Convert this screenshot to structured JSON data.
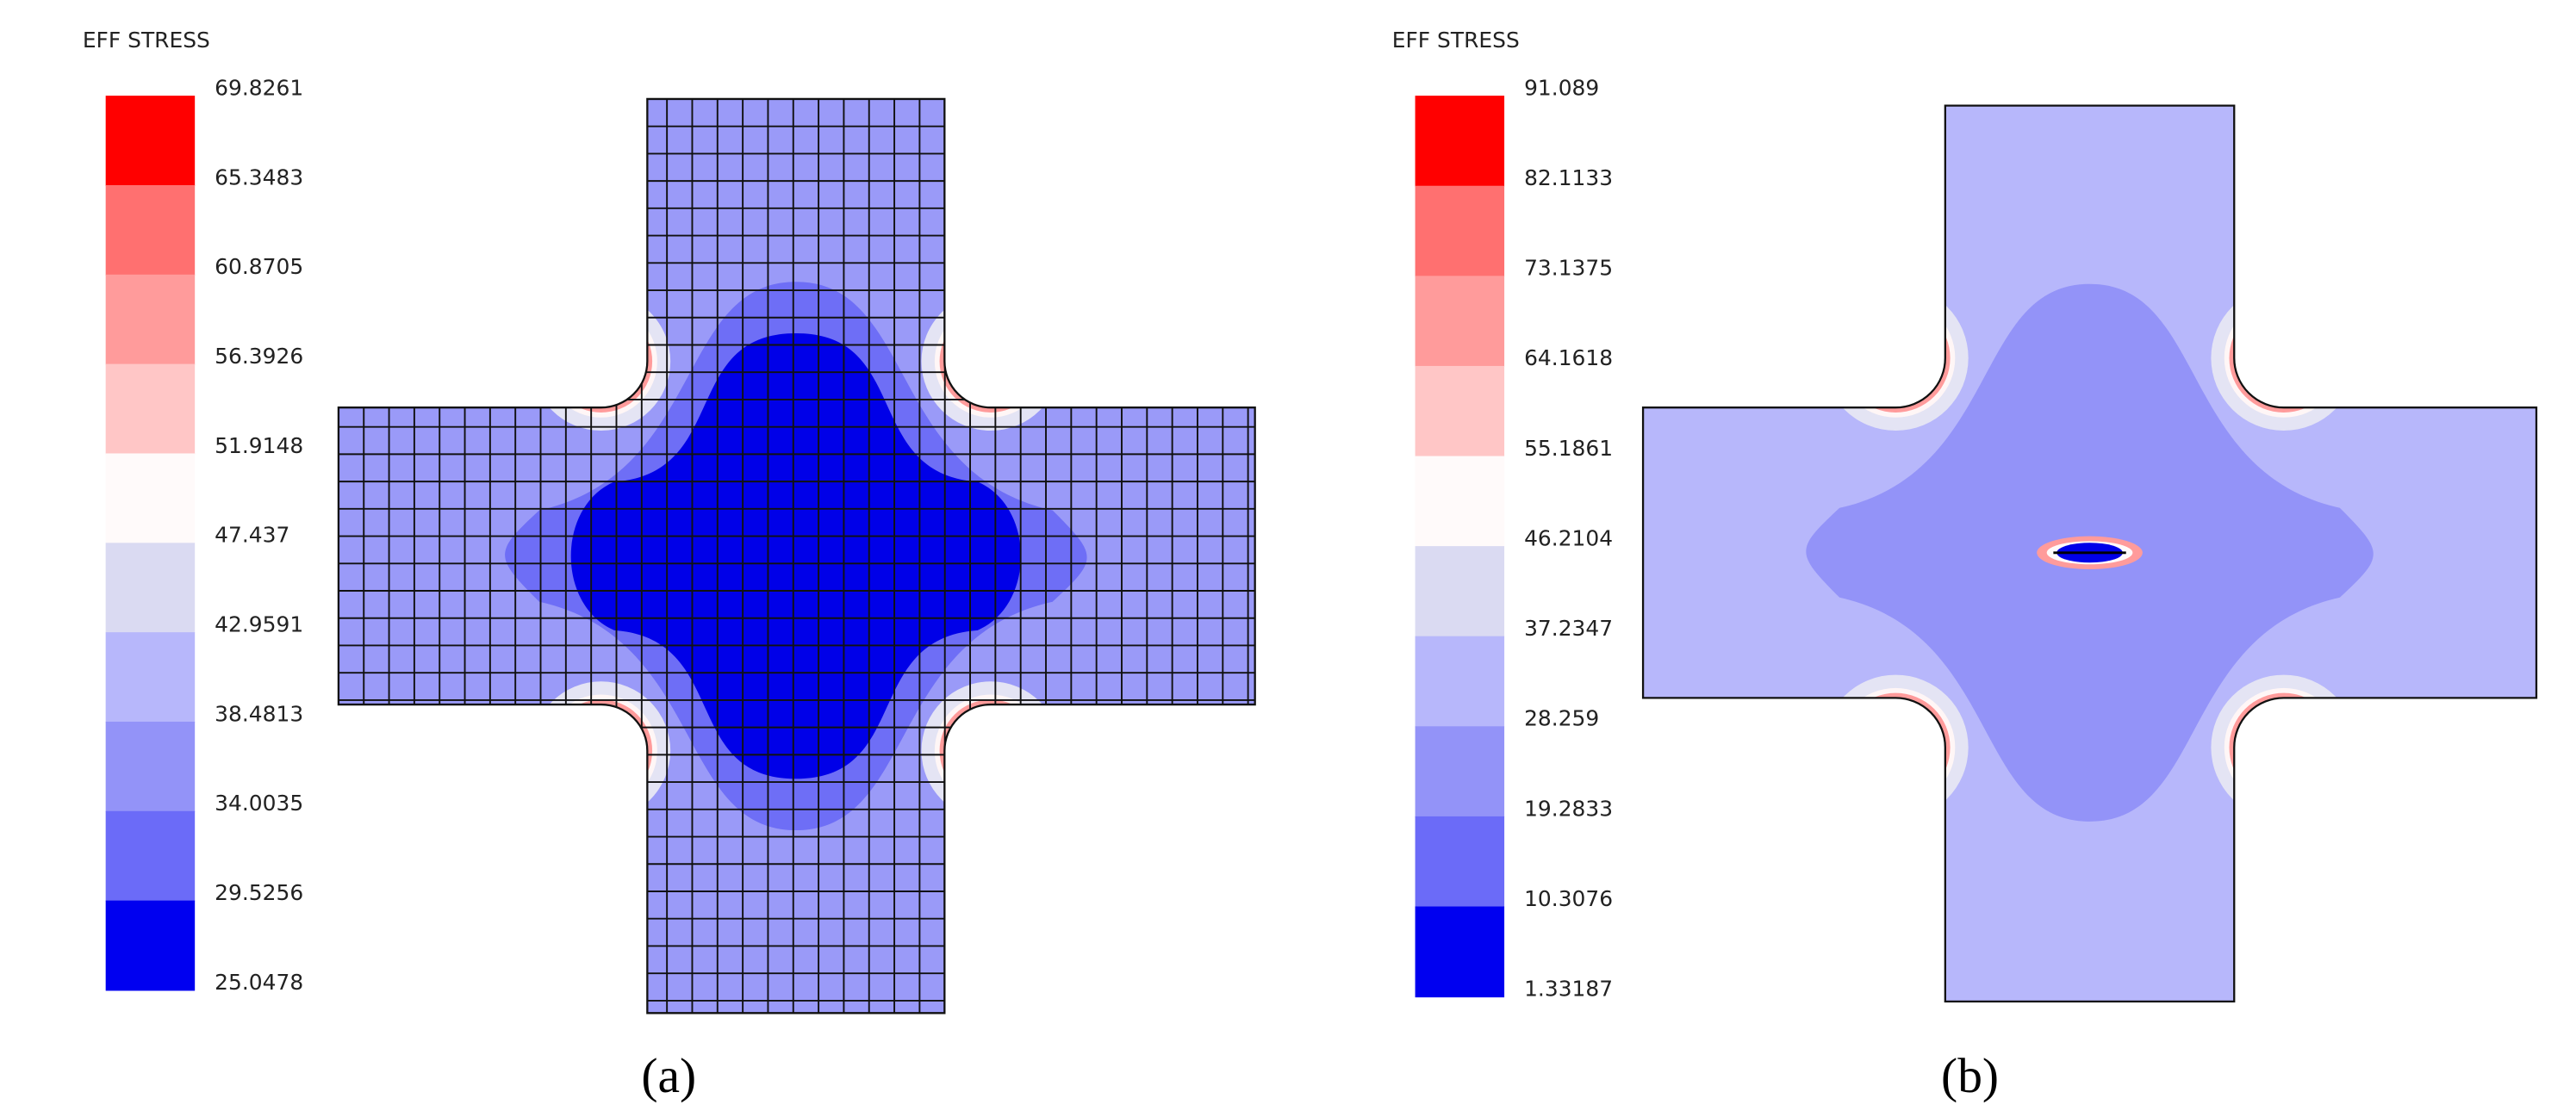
{
  "panels": [
    {
      "title": "EFF STRESS",
      "legend_labels": [
        "69.8261",
        "65.3483",
        "60.8705",
        "56.3926",
        "51.9148",
        "47.437",
        "42.9591",
        "38.4813",
        "34.0035",
        "29.5256",
        "25.0478"
      ],
      "legend_colors": [
        "#ff0000",
        "#ff7070",
        "#ff9b9b",
        "#ffc6c6",
        "#fffafa",
        "#dadaf2",
        "#b7b7fb",
        "#9393f8",
        "#6b6bf8",
        "#0000f0"
      ],
      "caption": "(a)"
    },
    {
      "title": "EFF STRESS",
      "legend_labels": [
        "91.089",
        "82.1133",
        "73.1375",
        "64.1618",
        "55.1861",
        "46.2104",
        "37.2347",
        "28.259",
        "19.2833",
        "10.3076",
        "1.33187"
      ],
      "legend_colors": [
        "#ff0000",
        "#ff7070",
        "#ff9b9b",
        "#ffc6c6",
        "#fffafa",
        "#dadaf2",
        "#b7b7fb",
        "#9393f8",
        "#6b6bf8",
        "#0000f0"
      ],
      "caption": "(b)"
    }
  ]
}
